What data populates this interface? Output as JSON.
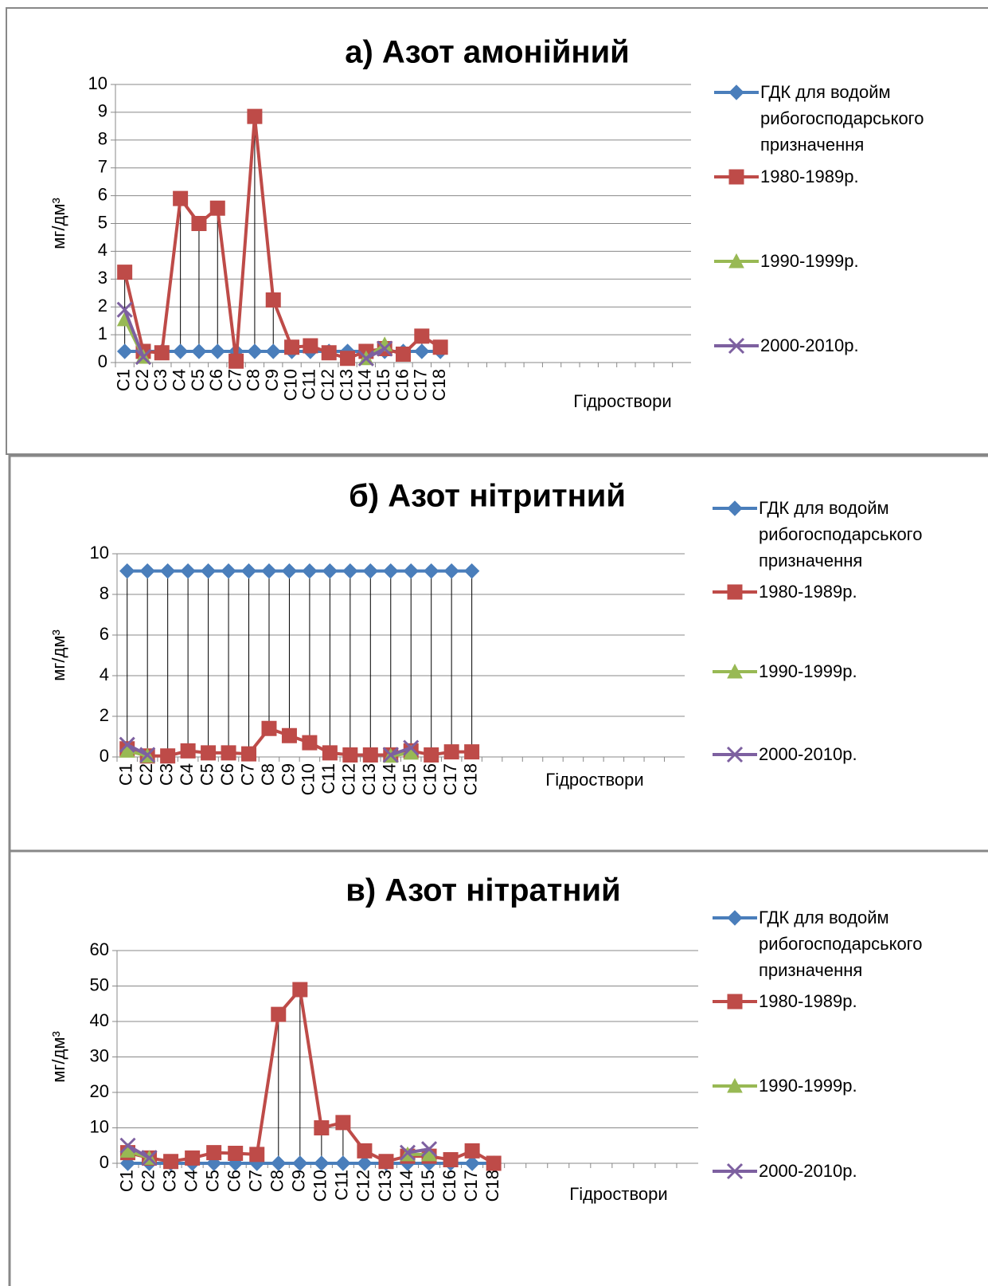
{
  "chart_data": [
    {
      "type": "line",
      "title": "а) Азот амонійний",
      "y_label": "мг/дм³",
      "x_label": "Гідроствори",
      "categories": [
        "C1",
        "C2",
        "C3",
        "C4",
        "C5",
        "C6",
        "C7",
        "C8",
        "C9",
        "C10",
        "C11",
        "C12",
        "C13",
        "C14",
        "C15",
        "C16",
        "C17",
        "C18",
        null,
        null,
        null,
        null,
        null,
        null,
        null,
        null,
        null,
        null,
        null,
        null,
        null
      ],
      "ylim": [
        0,
        10
      ],
      "yticks": [
        0,
        1,
        2,
        3,
        4,
        5,
        6,
        7,
        8,
        9,
        10
      ],
      "grid": true,
      "legend": "right",
      "high_low_lines": true,
      "series": [
        {
          "name": "ГДК для водойм рибогосподарського призначення",
          "color": "#4a7ebb",
          "marker": "diamond",
          "values": [
            0.4,
            0.4,
            0.4,
            0.4,
            0.4,
            0.4,
            0.4,
            0.4,
            0.4,
            0.4,
            0.4,
            0.4,
            0.4,
            0.4,
            0.4,
            0.4,
            0.4,
            0.4,
            null,
            null,
            null,
            null,
            null,
            null,
            null,
            null,
            null,
            null,
            null,
            null,
            null
          ]
        },
        {
          "name": "1980-1989р.",
          "color": "#be4b48",
          "marker": "square",
          "values": [
            3.25,
            0.4,
            0.35,
            5.9,
            5.0,
            5.55,
            0.05,
            8.85,
            2.25,
            0.55,
            0.6,
            0.35,
            0.15,
            0.4,
            0.5,
            0.3,
            0.95,
            0.55,
            null,
            null,
            null,
            null,
            null,
            null,
            null,
            null,
            null,
            null,
            null,
            null,
            null
          ]
        },
        {
          "name": "1990-1999р.",
          "color": "#98b954",
          "marker": "triangle",
          "values": [
            1.55,
            0.2,
            null,
            null,
            null,
            null,
            null,
            null,
            null,
            null,
            null,
            null,
            null,
            0.15,
            0.65,
            null,
            null,
            null,
            null,
            null,
            null,
            null,
            null,
            null,
            null,
            null,
            null,
            null,
            null,
            null,
            null
          ]
        },
        {
          "name": "2000-2010р.",
          "color": "#7d60a0",
          "marker": "x",
          "values": [
            1.9,
            0.2,
            null,
            null,
            null,
            null,
            null,
            null,
            null,
            null,
            null,
            null,
            null,
            0.15,
            0.5,
            null,
            null,
            null,
            null,
            null,
            null,
            null,
            null,
            null,
            null,
            null,
            null,
            null,
            null,
            null,
            null
          ]
        }
      ]
    },
    {
      "type": "line",
      "title": "б) Азот нітритний",
      "y_label": "мг/дм³",
      "x_label": "Гідроствори",
      "categories": [
        "C1",
        "C2",
        "C3",
        "C4",
        "C5",
        "C6",
        "C7",
        "C8",
        "C9",
        "C10",
        "C11",
        "C12",
        "C13",
        "C14",
        "C15",
        "C16",
        "C17",
        "C18",
        null,
        null,
        null,
        null,
        null,
        null,
        null,
        null,
        null,
        null
      ],
      "ylim": [
        0,
        10
      ],
      "yticks": [
        0,
        2,
        4,
        6,
        8,
        10
      ],
      "grid": true,
      "legend": "right",
      "high_low_lines": true,
      "series": [
        {
          "name": "ГДК для водойм рибогосподарського призначення",
          "color": "#4a7ebb",
          "marker": "diamond",
          "values": [
            9.15,
            9.15,
            9.15,
            9.15,
            9.15,
            9.15,
            9.15,
            9.15,
            9.15,
            9.15,
            9.15,
            9.15,
            9.15,
            9.15,
            9.15,
            9.15,
            9.15,
            9.15,
            null,
            null,
            null,
            null,
            null,
            null,
            null,
            null,
            null,
            null
          ]
        },
        {
          "name": "1980-1989р.",
          "color": "#be4b48",
          "marker": "square",
          "values": [
            0.4,
            0.05,
            0.05,
            0.3,
            0.2,
            0.2,
            0.15,
            1.4,
            1.05,
            0.7,
            0.2,
            0.1,
            0.1,
            0.1,
            0.3,
            0.1,
            0.25,
            0.25,
            null,
            null,
            null,
            null,
            null,
            null,
            null,
            null,
            null,
            null
          ]
        },
        {
          "name": "1990-1999р.",
          "color": "#98b954",
          "marker": "triangle",
          "values": [
            0.3,
            0.05,
            null,
            null,
            null,
            null,
            null,
            null,
            null,
            null,
            null,
            null,
            null,
            0.05,
            0.2,
            null,
            null,
            null,
            null,
            null,
            null,
            null,
            null,
            null,
            null,
            null,
            null,
            null
          ]
        },
        {
          "name": "2000-2010р.",
          "color": "#7d60a0",
          "marker": "x",
          "values": [
            0.6,
            0.1,
            null,
            null,
            null,
            null,
            null,
            null,
            null,
            null,
            null,
            null,
            null,
            0.1,
            0.45,
            null,
            null,
            null,
            null,
            null,
            null,
            null,
            null,
            null,
            null,
            null,
            null,
            null
          ]
        }
      ]
    },
    {
      "type": "line",
      "title": "в) Азот нітратний",
      "y_label": "мг/дм³",
      "x_label": "Гідроствори",
      "categories": [
        "C1",
        "C2",
        "C3",
        "C4",
        "C5",
        "C6",
        "C7",
        "C8",
        "C9",
        "C10",
        "C11",
        "C12",
        "C13",
        "C14",
        "C15",
        "C16",
        "C17",
        "C18",
        null,
        null,
        null,
        null,
        null,
        null,
        null,
        null,
        null
      ],
      "ylim": [
        0,
        60
      ],
      "yticks": [
        0,
        10,
        20,
        30,
        40,
        50,
        60
      ],
      "grid": true,
      "legend": "right",
      "high_low_lines": true,
      "series": [
        {
          "name": "ГДК для водойм рибогосподарського призначення",
          "color": "#4a7ebb",
          "marker": "diamond",
          "values": [
            0,
            0,
            0,
            0,
            0,
            0,
            0,
            0,
            0,
            0,
            0,
            0,
            0,
            0,
            0,
            0,
            0,
            0,
            null,
            null,
            null,
            null,
            null,
            null,
            null,
            null,
            null
          ]
        },
        {
          "name": "1980-1989р.",
          "color": "#be4b48",
          "marker": "square",
          "values": [
            3,
            1.5,
            0.5,
            1.5,
            3,
            2.8,
            2.5,
            42,
            49,
            10,
            11.5,
            3.5,
            0.5,
            2,
            2,
            1,
            3.5,
            0,
            null,
            null,
            null,
            null,
            null,
            null,
            null,
            null,
            null
          ]
        },
        {
          "name": "1990-1999р.",
          "color": "#98b954",
          "marker": "triangle",
          "values": [
            3.5,
            1.5,
            null,
            null,
            null,
            null,
            null,
            null,
            null,
            null,
            null,
            null,
            null,
            2.5,
            2.5,
            null,
            null,
            null,
            null,
            null,
            null,
            null,
            null,
            null,
            null,
            null,
            null
          ]
        },
        {
          "name": "2000-2010р.",
          "color": "#7d60a0",
          "marker": "x",
          "values": [
            5,
            1.5,
            null,
            null,
            null,
            null,
            null,
            null,
            null,
            null,
            null,
            null,
            null,
            3,
            4,
            null,
            null,
            null,
            null,
            null,
            null,
            null,
            null,
            null,
            null,
            null,
            null
          ]
        }
      ]
    }
  ]
}
